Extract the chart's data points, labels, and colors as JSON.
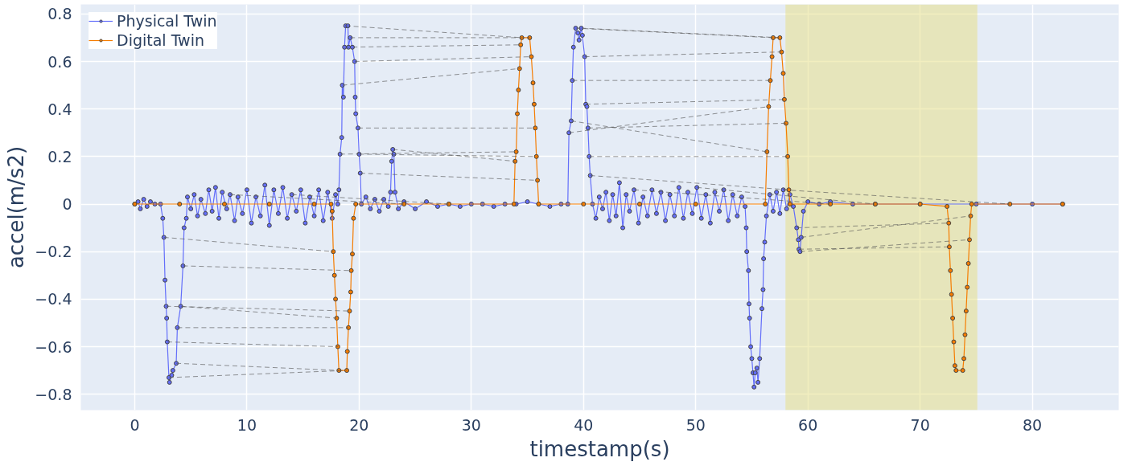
{
  "chart_data": {
    "type": "line",
    "xlabel": "timestamp(s)",
    "ylabel": "accel(m/s2)",
    "xlim": [
      -4.8,
      87.7
    ],
    "ylim": [
      -0.867,
      0.84
    ],
    "xticks": [
      0,
      10,
      20,
      30,
      40,
      50,
      60,
      70,
      80
    ],
    "yticks": [
      {
        "value": -0.8,
        "label": "−0.8"
      },
      {
        "value": -0.6,
        "label": "−0.6"
      },
      {
        "value": -0.4,
        "label": "−0.4"
      },
      {
        "value": -0.2,
        "label": "−0.2"
      },
      0,
      0.2,
      0.4,
      0.6,
      0.8
    ],
    "grid": true,
    "legend": "top left",
    "marker": "circle",
    "bands": [
      {
        "axis": "x",
        "from": 58.0,
        "to": 75.1,
        "color": "#e8e08a"
      }
    ],
    "series": [
      {
        "name": "Physical Twin",
        "color": "#636efa",
        "x": [
          0,
          0.3,
          0.5,
          0.8,
          1.1,
          1.4,
          1.8,
          2.3,
          2.5,
          2.6,
          2.7,
          2.8,
          2.85,
          2.9,
          3.05,
          3.1,
          3.3,
          3.4,
          3.7,
          3.8,
          4.1,
          4.3,
          4.4,
          4.6,
          4.7,
          5.0,
          5.3,
          5.6,
          5.9,
          6.3,
          6.6,
          6.9,
          7.2,
          7.5,
          7.8,
          8.2,
          8.5,
          8.9,
          9.2,
          9.6,
          10.0,
          10.4,
          10.8,
          11.2,
          11.6,
          12.0,
          12.4,
          12.8,
          13.2,
          13.6,
          14.0,
          14.4,
          14.8,
          15.2,
          15.6,
          16.0,
          16.4,
          16.8,
          17.2,
          17.6,
          17.9,
          18.1,
          18.2,
          18.3,
          18.45,
          18.5,
          18.6,
          18.7,
          18.8,
          19.0,
          19.05,
          19.2,
          19.4,
          19.6,
          19.65,
          19.7,
          19.9,
          20.0,
          20.1,
          20.2,
          20.6,
          21.0,
          21.4,
          21.8,
          22.2,
          22.6,
          22.8,
          22.9,
          23.0,
          23.1,
          23.2,
          23.5,
          24.0,
          25.0,
          26.0,
          27.0,
          28.0,
          29.0,
          30.0,
          31.0,
          32.0,
          33.0,
          34.0,
          35.0,
          36.0,
          37.0,
          38.0,
          38.6,
          38.7,
          38.9,
          39.0,
          39.1,
          39.3,
          39.5,
          39.6,
          39.8,
          39.9,
          40.1,
          40.2,
          40.3,
          40.4,
          40.5,
          40.6,
          40.8,
          41.1,
          41.4,
          41.7,
          42.0,
          42.3,
          42.6,
          42.9,
          43.2,
          43.5,
          43.8,
          44.1,
          44.5,
          44.9,
          45.3,
          45.7,
          46.1,
          46.5,
          46.9,
          47.3,
          47.7,
          48.1,
          48.5,
          48.9,
          49.3,
          49.7,
          50.1,
          50.5,
          50.9,
          51.3,
          51.7,
          52.1,
          52.5,
          52.9,
          53.3,
          53.7,
          54.1,
          54.4,
          54.5,
          54.55,
          54.7,
          54.75,
          54.8,
          54.9,
          55.0,
          55.1,
          55.2,
          55.3,
          55.45,
          55.55,
          55.7,
          55.9,
          56.0,
          56.05,
          56.15,
          56.3,
          56.6,
          56.9,
          57.2,
          57.5,
          57.8,
          58.1,
          58.4,
          58.7,
          59.0,
          59.15,
          59.2,
          59.3,
          59.4,
          59.6,
          60.0,
          61.0,
          62.0,
          64.0,
          66.0,
          70.0,
          75.0,
          80.0,
          82.7
        ],
        "values": [
          0.0,
          0.01,
          -0.02,
          0.02,
          -0.01,
          0.01,
          0.0,
          0.0,
          -0.06,
          -0.14,
          -0.32,
          -0.43,
          -0.48,
          -0.58,
          -0.73,
          -0.75,
          -0.72,
          -0.7,
          -0.67,
          -0.52,
          -0.43,
          -0.26,
          -0.1,
          -0.06,
          0.03,
          -0.02,
          0.04,
          -0.05,
          0.02,
          -0.04,
          0.06,
          -0.03,
          0.07,
          -0.06,
          0.05,
          -0.02,
          0.04,
          -0.07,
          0.03,
          -0.04,
          0.06,
          -0.08,
          0.03,
          -0.05,
          0.08,
          -0.09,
          0.06,
          -0.04,
          0.07,
          -0.06,
          0.04,
          -0.03,
          0.06,
          -0.08,
          0.03,
          -0.05,
          0.06,
          -0.07,
          0.05,
          -0.06,
          0.04,
          0.0,
          0.06,
          0.21,
          0.28,
          0.5,
          0.45,
          0.66,
          0.75,
          0.75,
          0.66,
          0.7,
          0.66,
          0.6,
          0.45,
          0.38,
          0.32,
          0.21,
          0.13,
          0.0,
          0.03,
          -0.02,
          0.02,
          -0.03,
          0.02,
          -0.01,
          0.05,
          0.18,
          0.23,
          0.21,
          0.05,
          -0.02,
          0.01,
          -0.02,
          0.01,
          -0.01,
          0.0,
          -0.01,
          0.0,
          0.0,
          -0.01,
          0.0,
          0.0,
          0.01,
          0.0,
          -0.01,
          0.0,
          0.0,
          0.3,
          0.35,
          0.52,
          0.66,
          0.74,
          0.72,
          0.69,
          0.74,
          0.71,
          0.62,
          0.42,
          0.41,
          0.32,
          0.2,
          0.12,
          0.0,
          -0.06,
          0.03,
          -0.02,
          0.05,
          -0.07,
          0.04,
          -0.05,
          0.09,
          -0.1,
          0.04,
          -0.03,
          0.06,
          -0.08,
          0.03,
          -0.05,
          0.06,
          -0.04,
          0.05,
          -0.07,
          0.04,
          -0.05,
          0.07,
          -0.06,
          0.05,
          -0.04,
          0.07,
          -0.06,
          0.04,
          -0.08,
          0.05,
          -0.03,
          0.06,
          -0.07,
          0.04,
          -0.05,
          0.03,
          -0.01,
          -0.1,
          -0.2,
          -0.28,
          -0.42,
          -0.48,
          -0.6,
          -0.65,
          -0.71,
          -0.77,
          -0.71,
          -0.69,
          -0.75,
          -0.65,
          -0.44,
          -0.36,
          -0.23,
          -0.16,
          -0.05,
          0.04,
          -0.03,
          0.05,
          -0.04,
          0.06,
          -0.02,
          0.04,
          -0.01,
          -0.1,
          -0.15,
          -0.19,
          -0.2,
          -0.14,
          -0.03,
          0.01,
          0.0,
          0.01,
          0.0,
          0.0,
          0.0,
          0.0,
          0.0,
          0.0
        ]
      },
      {
        "name": "Digital Twin",
        "color": "#f57c00",
        "x": [
          0,
          4,
          8,
          12,
          16,
          17.5,
          17.6,
          17.7,
          17.8,
          17.9,
          18.0,
          18.1,
          18.2,
          18.9,
          18.95,
          19.05,
          19.15,
          19.25,
          19.3,
          19.4,
          19.5,
          19.7,
          24,
          28,
          33.8,
          33.9,
          34.0,
          34.1,
          34.2,
          34.3,
          34.4,
          34.5,
          35.2,
          35.35,
          35.5,
          35.6,
          35.7,
          35.8,
          35.9,
          36.0,
          40,
          45,
          50,
          56.2,
          56.35,
          56.5,
          56.65,
          56.8,
          56.9,
          57.5,
          57.65,
          57.8,
          57.9,
          58.05,
          58.2,
          58.3,
          58.4,
          62,
          66,
          70,
          72.4,
          72.55,
          72.6,
          72.7,
          72.8,
          72.9,
          73.0,
          73.1,
          73.2,
          73.8,
          73.9,
          74.0,
          74.1,
          74.2,
          74.3,
          74.4,
          74.5,
          74.6,
          78,
          82.7
        ],
        "values": [
          0,
          0,
          0,
          0,
          0,
          0,
          -0.03,
          -0.2,
          -0.3,
          -0.4,
          -0.48,
          -0.6,
          -0.7,
          -0.7,
          -0.62,
          -0.52,
          -0.45,
          -0.37,
          -0.28,
          -0.21,
          -0.06,
          0.0,
          0,
          0,
          0,
          0.18,
          0.22,
          0.38,
          0.48,
          0.57,
          0.67,
          0.7,
          0.7,
          0.62,
          0.51,
          0.42,
          0.32,
          0.2,
          0.1,
          0.0,
          0,
          0,
          0,
          0,
          0.22,
          0.41,
          0.52,
          0.62,
          0.7,
          0.7,
          0.64,
          0.55,
          0.44,
          0.34,
          0.2,
          0.06,
          0.0,
          0,
          0,
          0,
          -0.01,
          -0.08,
          -0.18,
          -0.28,
          -0.38,
          -0.48,
          -0.58,
          -0.68,
          -0.7,
          -0.7,
          -0.65,
          -0.55,
          -0.45,
          -0.35,
          -0.25,
          -0.15,
          -0.05,
          0.0,
          0,
          0
        ]
      },
      {
        "color": "#555555",
        "line_style": "dashed",
        "marker": "none",
        "x": [
          2.6,
          17.7,
          null,
          4.3,
          19.3,
          null,
          2.8,
          19.15,
          null,
          4.1,
          18.0,
          null,
          2.9,
          18.1,
          null,
          3.8,
          19.05,
          null,
          3.05,
          18.9,
          null,
          3.7,
          18.2,
          null,
          18.8,
          34.5,
          null,
          19.2,
          35.2,
          null,
          19.6,
          35.35,
          null,
          18.7,
          34.4,
          null,
          19.9,
          35.7,
          null,
          18.5,
          34.3,
          null,
          20.0,
          35.8,
          null,
          18.3,
          34.0,
          null,
          20.1,
          35.9,
          null,
          23.0,
          33.9,
          null,
          39.3,
          56.9,
          null,
          39.8,
          57.5,
          null,
          40.1,
          57.65,
          null,
          38.7,
          56.5,
          null,
          40.2,
          57.9,
          null,
          39.0,
          56.65,
          null,
          40.4,
          58.05,
          null,
          40.5,
          58.2,
          null,
          38.9,
          56.35,
          null,
          40.6,
          58.3,
          null,
          59.0,
          72.55,
          null,
          59.2,
          72.6,
          null,
          59.3,
          74.4,
          null,
          59.4,
          74.5,
          null,
          8.5,
          24,
          null,
          14.0,
          28,
          null,
          44.5,
          62,
          null,
          50.1,
          66,
          null,
          57.8,
          78
        ],
        "values": [
          -0.14,
          -0.2,
          null,
          -0.26,
          -0.28,
          null,
          -0.43,
          -0.45,
          null,
          -0.43,
          -0.48,
          null,
          -0.58,
          -0.6,
          null,
          -0.52,
          -0.52,
          null,
          -0.73,
          -0.7,
          null,
          -0.67,
          -0.7,
          null,
          0.75,
          0.7,
          null,
          0.7,
          0.7,
          null,
          0.6,
          0.62,
          null,
          0.66,
          0.67,
          null,
          0.32,
          0.32,
          null,
          0.5,
          0.57,
          null,
          0.21,
          0.2,
          null,
          0.21,
          0.22,
          null,
          0.13,
          0.1,
          null,
          0.23,
          0.18,
          null,
          0.74,
          0.7,
          null,
          0.74,
          0.7,
          null,
          0.62,
          0.64,
          null,
          0.3,
          0.41,
          null,
          0.42,
          0.44,
          null,
          0.52,
          0.52,
          null,
          0.32,
          0.34,
          null,
          0.2,
          0.2,
          null,
          0.35,
          0.22,
          null,
          0.12,
          0.06,
          null,
          -0.1,
          -0.08,
          null,
          -0.19,
          -0.18,
          null,
          -0.2,
          -0.15,
          null,
          -0.14,
          -0.05,
          null,
          0.04,
          0,
          null,
          0.04,
          0,
          null,
          0.06,
          0,
          null,
          0.07,
          0,
          null,
          0.06,
          0
        ]
      }
    ]
  }
}
